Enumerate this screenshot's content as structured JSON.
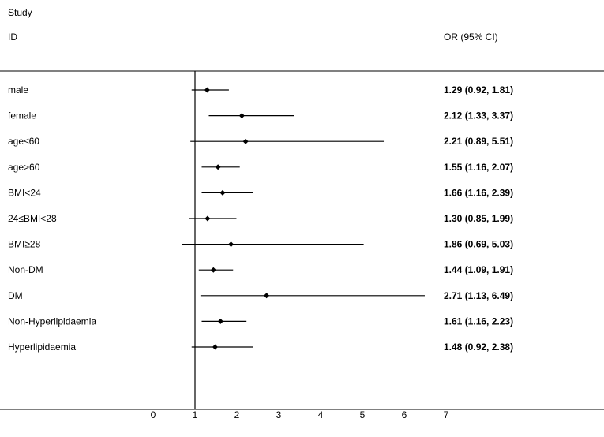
{
  "chart_data": {
    "type": "forest",
    "header": {
      "study_label": "Study",
      "id_label": "ID",
      "or_label": "OR (95% CI)"
    },
    "reference_line": 1,
    "xlim": [
      0,
      7
    ],
    "xticks": [
      "0",
      "1",
      "2",
      "3",
      "4",
      "5",
      "6",
      "7"
    ],
    "rows": [
      {
        "label": "male",
        "or": 1.29,
        "lo": 0.92,
        "hi": 1.81,
        "text": "1.29 (0.92, 1.81)"
      },
      {
        "label": "female",
        "or": 2.12,
        "lo": 1.33,
        "hi": 3.37,
        "text": "2.12 (1.33, 3.37)"
      },
      {
        "label": "age≤60",
        "or": 2.21,
        "lo": 0.89,
        "hi": 5.51,
        "text": "2.21 (0.89, 5.51)"
      },
      {
        "label": "age>60",
        "or": 1.55,
        "lo": 1.16,
        "hi": 2.07,
        "text": "1.55 (1.16, 2.07)"
      },
      {
        "label": "BMI<24",
        "or": 1.66,
        "lo": 1.16,
        "hi": 2.39,
        "text": "1.66 (1.16, 2.39)"
      },
      {
        "label": "24≤BMI<28",
        "or": 1.3,
        "lo": 0.85,
        "hi": 1.99,
        "text": "1.30 (0.85, 1.99)"
      },
      {
        "label": "BMI≥28",
        "or": 1.86,
        "lo": 0.69,
        "hi": 5.03,
        "text": "1.86 (0.69, 5.03)"
      },
      {
        "label": "Non-DM",
        "or": 1.44,
        "lo": 1.09,
        "hi": 1.91,
        "text": "1.44 (1.09, 1.91)"
      },
      {
        "label": "DM",
        "or": 2.71,
        "lo": 1.13,
        "hi": 6.49,
        "text": "2.71 (1.13, 6.49)"
      },
      {
        "label": "Non-Hyperlipidaemia",
        "or": 1.61,
        "lo": 1.16,
        "hi": 2.23,
        "text": "1.61 (1.16, 2.23)"
      },
      {
        "label": "Hyperlipidaemia",
        "or": 1.48,
        "lo": 0.92,
        "hi": 2.38,
        "text": "1.48 (0.92, 2.38)"
      }
    ],
    "colors": {
      "line": "#000000",
      "marker": "#000000",
      "background": "#ffffff"
    }
  }
}
